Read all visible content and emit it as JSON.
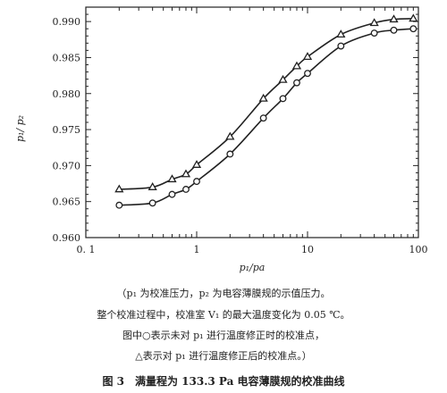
{
  "chart_data": {
    "type": "line",
    "xscale": "log",
    "xlim": [
      0.1,
      100
    ],
    "ylim": [
      0.96,
      0.992
    ],
    "xticks": [
      0.1,
      1,
      10,
      100
    ],
    "xtick_labels": [
      "0. 1",
      "1",
      "10",
      "100"
    ],
    "yticks": [
      0.96,
      0.965,
      0.97,
      0.975,
      0.98,
      0.985,
      0.99
    ],
    "ytick_labels": [
      "0.960",
      "0.965",
      "0.970",
      "0.975",
      "0.980",
      "0.985",
      "0.990"
    ],
    "xlabel": "p₁/pa",
    "ylabel": "p₁/ p₂",
    "grid": false,
    "series": [
      {
        "marker": "triangle",
        "x": [
          0.2,
          0.4,
          0.6,
          0.8,
          1.0,
          2.0,
          4.0,
          6.0,
          8.0,
          10.0,
          20.0,
          40.0,
          60.0,
          90.0
        ],
        "y": [
          0.9667,
          0.967,
          0.9681,
          0.9688,
          0.9701,
          0.974,
          0.9793,
          0.9819,
          0.9838,
          0.9851,
          0.9882,
          0.9898,
          0.9903,
          0.9904
        ]
      },
      {
        "marker": "circle",
        "x": [
          0.2,
          0.4,
          0.6,
          0.8,
          1.0,
          2.0,
          4.0,
          6.0,
          8.0,
          10.0,
          20.0,
          40.0,
          60.0,
          90.0
        ],
        "y": [
          0.9645,
          0.9648,
          0.966,
          0.9667,
          0.9678,
          0.9716,
          0.9766,
          0.9793,
          0.9815,
          0.9828,
          0.9866,
          0.9884,
          0.9888,
          0.989
        ]
      }
    ]
  },
  "caption": {
    "line1": "（p₁ 为校准压力，p₂ 为电容薄膜规的示值压力。",
    "line2": "整个校准过程中，校准室 V₁ 的最大温度变化为 0.05 ℃。",
    "line3": "图中○表示未对 p₁ 进行温度修正时的校准点，",
    "line4": "△表示对 p₁ 进行温度修正后的校准点。）",
    "title": "图 3　满量程为 133.3 Pa 电容薄膜规的校准曲线"
  }
}
